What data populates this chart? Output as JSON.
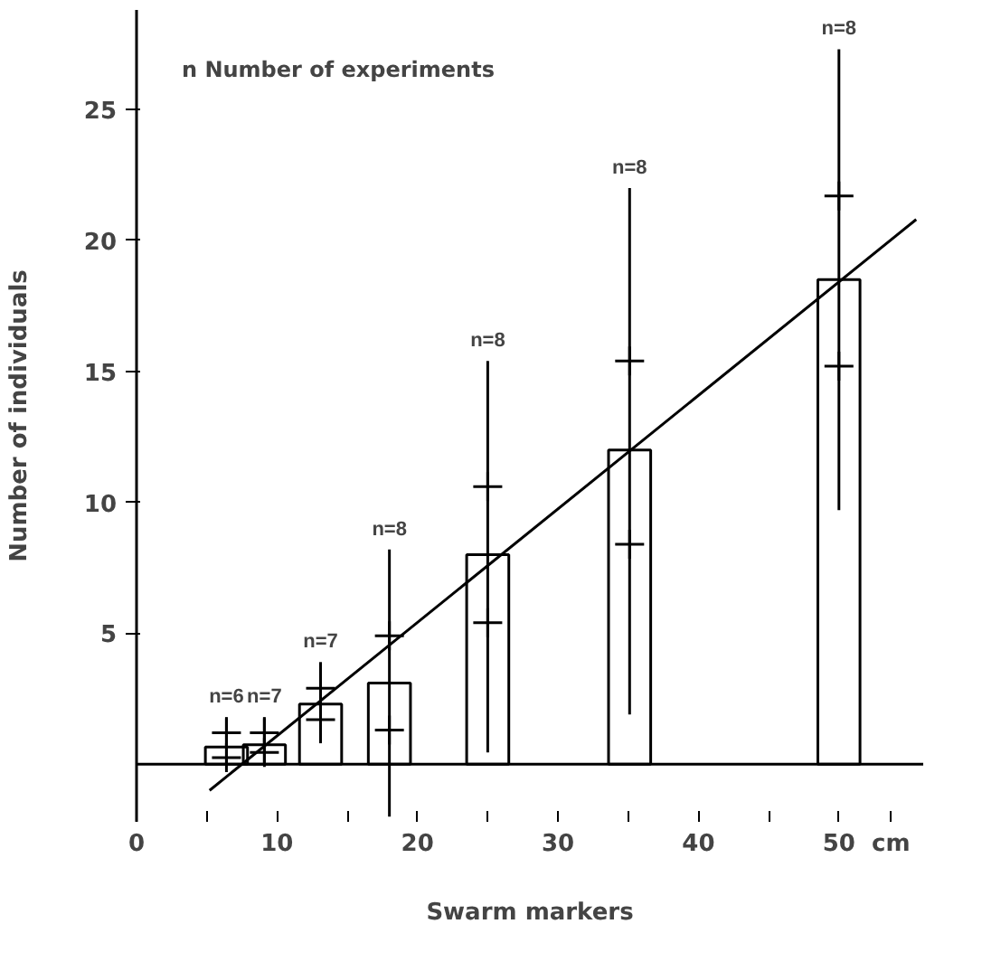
{
  "chart_data": {
    "type": "bar",
    "xlabel": "Swarm markers",
    "ylabel": "Number of individuals",
    "x": [
      6.4,
      9.1,
      13.1,
      18,
      25,
      35.1,
      50
    ],
    "series": [
      {
        "color": "#000000",
        "values": [
          0.66,
          0.74,
          2.3,
          3.1,
          8,
          12,
          18.5
        ],
        "errors": [
          [
            0,
            1.8
          ],
          [
            0,
            1.8
          ],
          [
            0.8,
            3.9
          ],
          [
            -2.0,
            8.2
          ],
          [
            0.45,
            15.4
          ],
          [
            1.9,
            22
          ],
          [
            9.7,
            27.3
          ]
        ]
      },
      {
        "type": "scatter",
        "marker": "cross",
        "color": "#000000",
        "values": [
          1.2,
          1.2,
          2.9,
          4.9,
          10.6,
          15.4,
          21.7
        ]
      },
      {
        "type": "scatter",
        "marker": "cross",
        "color": "#000000",
        "values": [
          0.25,
          0.45,
          1.7,
          1.3,
          5.4,
          8.4,
          15.2
        ]
      },
      {
        "type": "line",
        "color": "#000000",
        "x": [
          5.2,
          55.5
        ],
        "values": [
          -1.0,
          20.8
        ]
      }
    ],
    "annotations": [
      "n  Number of experiments",
      {
        "text": "n=6",
        "x": 6.4,
        "y": 1.8
      },
      {
        "text": "n=7",
        "x": 9.1,
        "y": 1.8
      },
      {
        "text": "n=7",
        "x": 13.1,
        "y": 3.9
      },
      {
        "text": "n=8",
        "x": 18,
        "y": 8.2
      },
      {
        "text": "n=8",
        "x": 25,
        "y": 15.4
      },
      {
        "text": "n=8",
        "x": 35.1,
        "y": 22
      },
      {
        "text": "n=8",
        "x": 50,
        "y": 27.3
      }
    ],
    "ref_lines": [
      {
        "axis": "y",
        "value": 0,
        "color": "#000000"
      }
    ],
    "xlim": [
      0,
      56
    ],
    "ylim": [
      -2.2,
      28.8
    ],
    "xticks": [
      0,
      {
        "value": 5,
        "label": null
      },
      10,
      {
        "value": 15,
        "label": null
      },
      20,
      {
        "value": 25,
        "label": null
      },
      30,
      {
        "value": 35,
        "label": null
      },
      40,
      {
        "value": 45,
        "label": null
      },
      50,
      {
        "value": 53.7,
        "label": "cm"
      }
    ],
    "yticks": [
      5,
      10,
      15,
      20,
      25
    ]
  }
}
